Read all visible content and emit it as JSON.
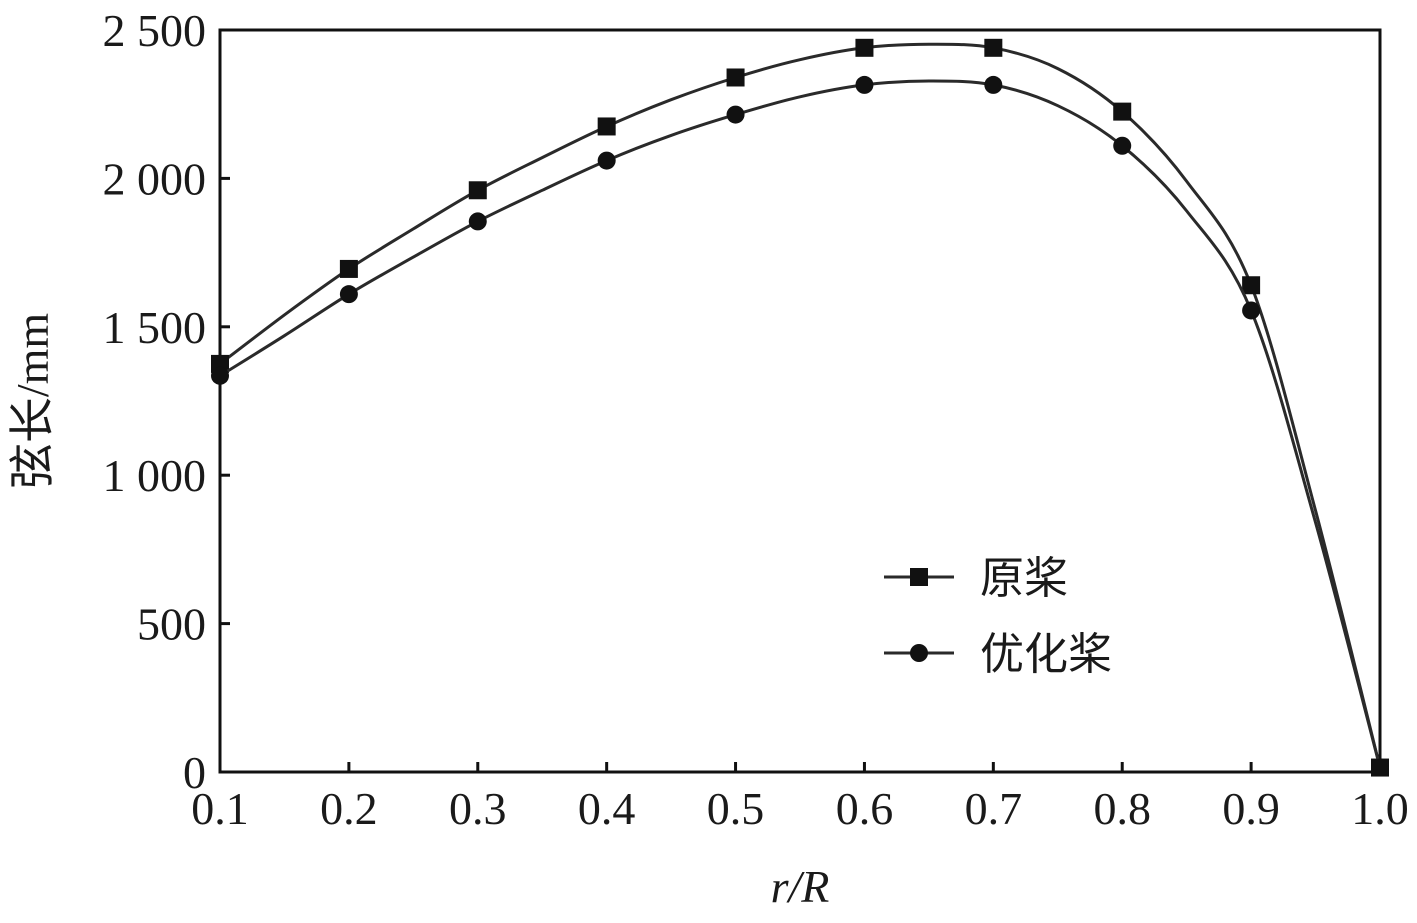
{
  "chart_data": {
    "type": "line",
    "xlabel": "r/R",
    "ylabel": "弦长/mm",
    "xlim": [
      0.1,
      1.0
    ],
    "ylim": [
      0,
      2500
    ],
    "x_ticks": [
      0.1,
      0.2,
      0.3,
      0.4,
      0.5,
      0.6,
      0.7,
      0.8,
      0.9,
      1.0
    ],
    "x_tick_labels": [
      "0.1",
      "0.2",
      "0.3",
      "0.4",
      "0.5",
      "0.6",
      "0.7",
      "0.8",
      "0.9",
      "1.0"
    ],
    "y_ticks": [
      0,
      500,
      1000,
      1500,
      2000,
      2500
    ],
    "y_tick_labels": [
      "0",
      "500",
      "1 000",
      "1 500",
      "2 000",
      "2 500"
    ],
    "grid": false,
    "legend_position": "lower-right-inside",
    "colors": {
      "line": "#2a2a2a",
      "marker": "#111111",
      "axis": "#111111"
    },
    "series": [
      {
        "name": "原桨",
        "marker": "square",
        "x": [
          0.1,
          0.2,
          0.3,
          0.4,
          0.5,
          0.6,
          0.7,
          0.8,
          0.9,
          1.0
        ],
        "values": [
          1375,
          1695,
          1960,
          2175,
          2340,
          2440,
          2440,
          2225,
          1640,
          15
        ],
        "curve": [
          [
            0.1,
            1375
          ],
          [
            0.15,
            1540
          ],
          [
            0.2,
            1695
          ],
          [
            0.25,
            1830
          ],
          [
            0.3,
            1960
          ],
          [
            0.35,
            2070
          ],
          [
            0.4,
            2175
          ],
          [
            0.45,
            2265
          ],
          [
            0.5,
            2340
          ],
          [
            0.55,
            2400
          ],
          [
            0.6,
            2440
          ],
          [
            0.65,
            2452
          ],
          [
            0.7,
            2440
          ],
          [
            0.75,
            2370
          ],
          [
            0.8,
            2225
          ],
          [
            0.85,
            1990
          ],
          [
            0.9,
            1640
          ],
          [
            0.95,
            880
          ],
          [
            1.0,
            15
          ]
        ]
      },
      {
        "name": "优化桨",
        "marker": "circle",
        "x": [
          0.1,
          0.2,
          0.3,
          0.4,
          0.5,
          0.6,
          0.7,
          0.8,
          0.9,
          1.0
        ],
        "values": [
          1335,
          1610,
          1855,
          2060,
          2215,
          2315,
          2315,
          2110,
          1555,
          15
        ],
        "curve": [
          [
            0.1,
            1335
          ],
          [
            0.15,
            1470
          ],
          [
            0.2,
            1610
          ],
          [
            0.25,
            1735
          ],
          [
            0.3,
            1855
          ],
          [
            0.35,
            1960
          ],
          [
            0.4,
            2060
          ],
          [
            0.45,
            2145
          ],
          [
            0.5,
            2215
          ],
          [
            0.55,
            2275
          ],
          [
            0.6,
            2315
          ],
          [
            0.65,
            2328
          ],
          [
            0.7,
            2315
          ],
          [
            0.75,
            2245
          ],
          [
            0.8,
            2110
          ],
          [
            0.85,
            1890
          ],
          [
            0.9,
            1555
          ],
          [
            0.95,
            840
          ],
          [
            1.0,
            15
          ]
        ]
      }
    ]
  }
}
